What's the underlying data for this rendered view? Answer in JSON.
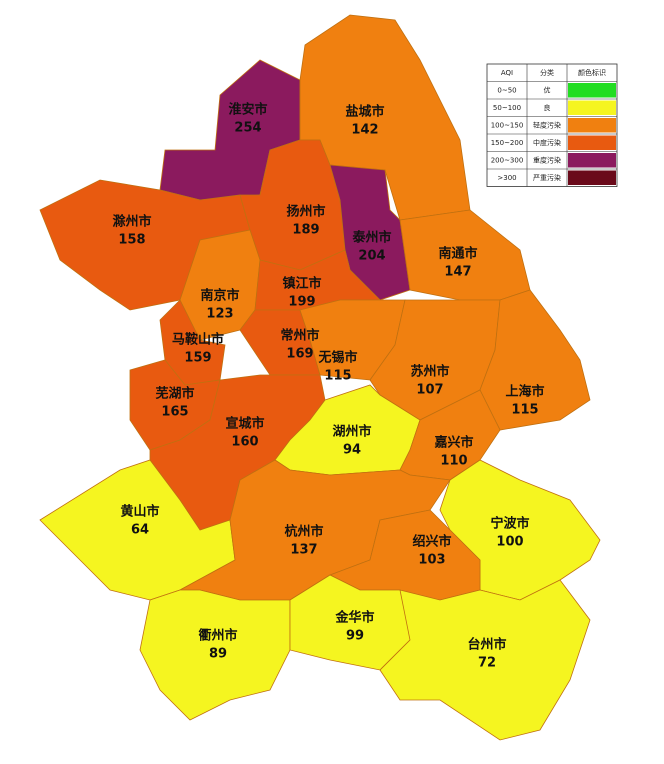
{
  "map_data": {
    "cities": [
      {
        "name": "淮安市",
        "value": 254,
        "color": "#8b1a5e"
      },
      {
        "name": "盐城市",
        "value": 142,
        "color": "#f08010"
      },
      {
        "name": "滁州市",
        "value": 158,
        "color": "#e85a10"
      },
      {
        "name": "扬州市",
        "value": 189,
        "color": "#e85a10"
      },
      {
        "name": "泰州市",
        "value": 204,
        "color": "#8b1a5e"
      },
      {
        "name": "南通市",
        "value": 147,
        "color": "#f08010"
      },
      {
        "name": "南京市",
        "value": 123,
        "color": "#f08010"
      },
      {
        "name": "镇江市",
        "value": 199,
        "color": "#e85a10"
      },
      {
        "name": "马鞍山市",
        "value": 159,
        "color": "#e85a10"
      },
      {
        "name": "常州市",
        "value": 169,
        "color": "#e85a10"
      },
      {
        "name": "无锡市",
        "value": 115,
        "color": "#f08010"
      },
      {
        "name": "苏州市",
        "value": 107,
        "color": "#f08010"
      },
      {
        "name": "上海市",
        "value": 115,
        "color": "#f08010"
      },
      {
        "name": "芜湖市",
        "value": 165,
        "color": "#e85a10"
      },
      {
        "name": "宣城市",
        "value": 160,
        "color": "#e85a10"
      },
      {
        "name": "湖州市",
        "value": 94,
        "color": "#f5f520"
      },
      {
        "name": "嘉兴市",
        "value": 110,
        "color": "#f08010"
      },
      {
        "name": "黄山市",
        "value": 64,
        "color": "#f5f520"
      },
      {
        "name": "杭州市",
        "value": 137,
        "color": "#f08010"
      },
      {
        "name": "宁波市",
        "value": 100,
        "color": "#f5f520"
      },
      {
        "name": "绍兴市",
        "value": 103,
        "color": "#f08010"
      },
      {
        "name": "衢州市",
        "value": 89,
        "color": "#f5f520"
      },
      {
        "name": "金华市",
        "value": 99,
        "color": "#f5f520"
      },
      {
        "name": "台州市",
        "value": 72,
        "color": "#f5f520"
      }
    ],
    "legend": {
      "headers": [
        "AQI",
        "分类",
        "颜色标识"
      ],
      "rows": [
        {
          "range": "0~50",
          "category": "优",
          "color": "#22dd22"
        },
        {
          "range": "50~100",
          "category": "良",
          "color": "#f5f520"
        },
        {
          "range": "100~150",
          "category": "轻度污染",
          "color": "#f08010"
        },
        {
          "range": "150~200",
          "category": "中度污染",
          "color": "#e85a10"
        },
        {
          "range": "200~300",
          "category": "重度污染",
          "color": "#8b1a5e"
        },
        {
          "range": ">300",
          "category": "严重污染",
          "color": "#6a0a1a"
        }
      ]
    }
  }
}
